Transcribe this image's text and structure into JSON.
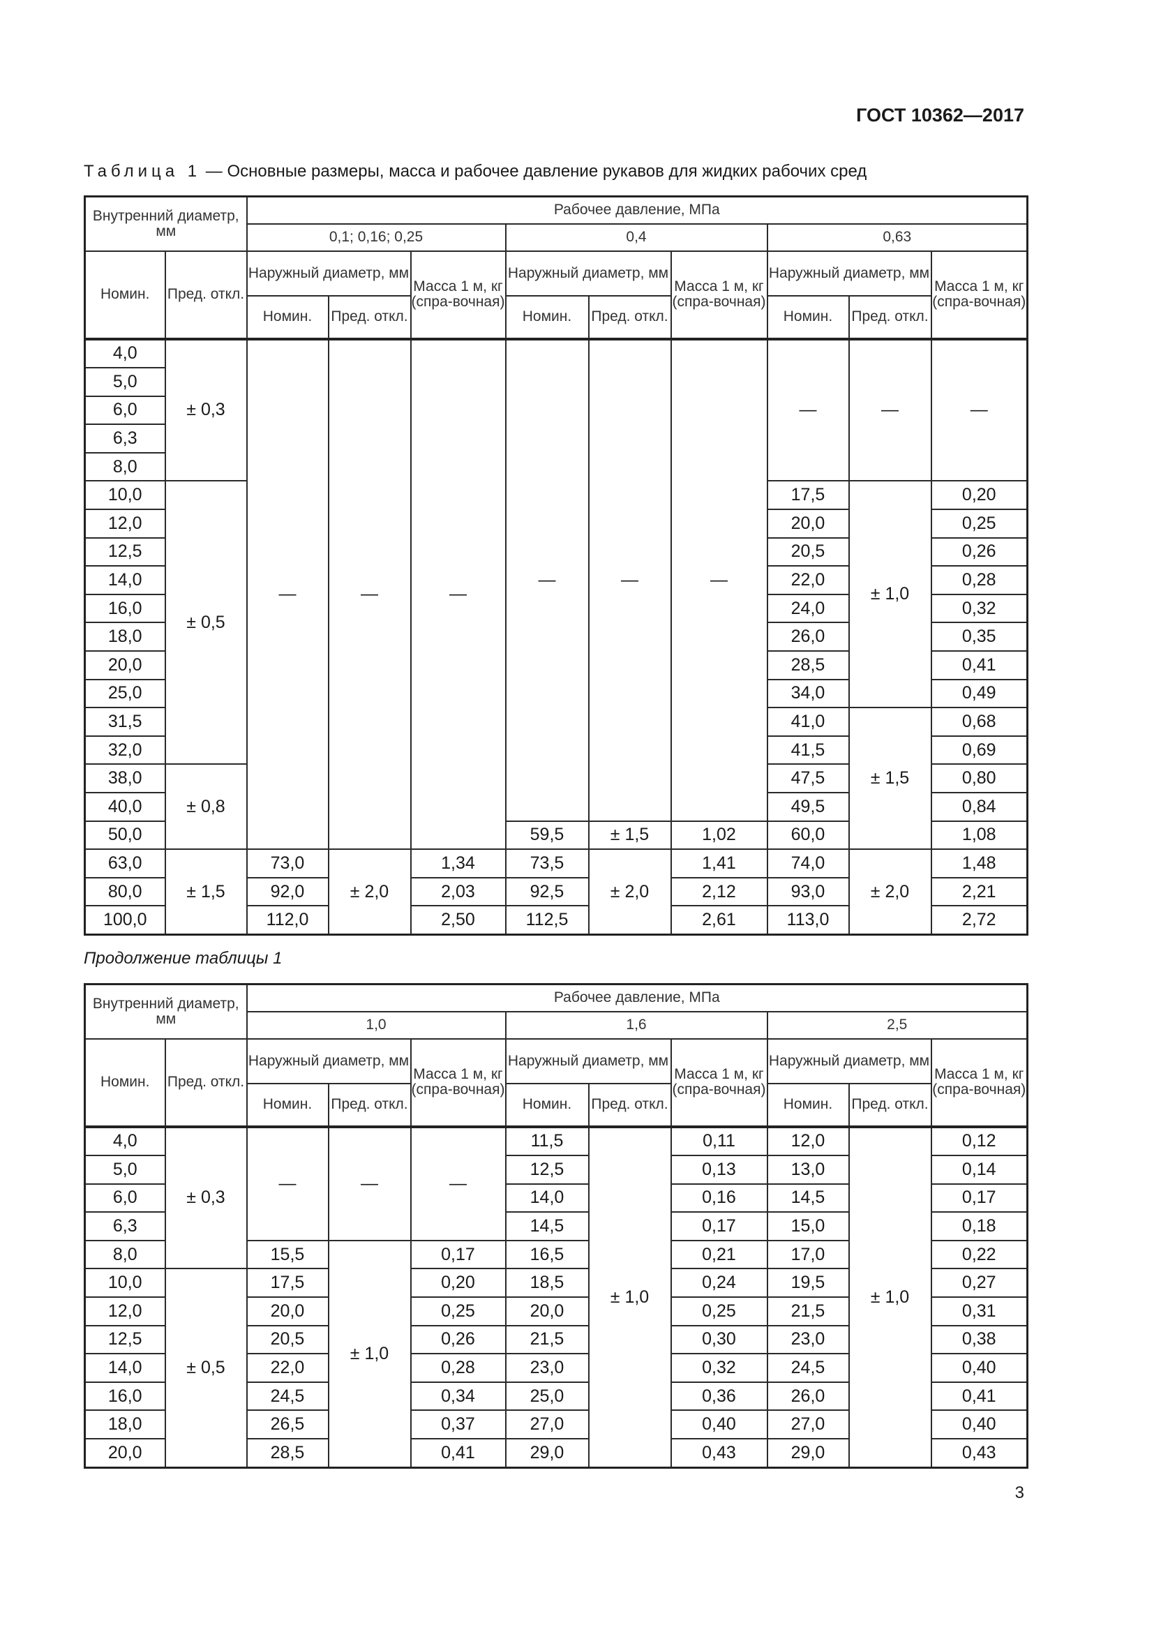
{
  "document": {
    "code": "ГОСТ 10362—2017",
    "caption_lead": "Таблица 1",
    "caption_text": " — Основные размеры, масса и рабочее давление рукавов для жидких рабочих сред",
    "continuation": "Продолжение таблицы 1",
    "page_number": "3"
  },
  "header": {
    "inner_diameter": "Внутренний диаметр, мм",
    "working_pressure": "Рабочее давление, МПа",
    "outer_diameter": "Наружный диаметр, мм",
    "mass": "Масса 1 м, кг (спра-вочная)",
    "nominal": "Номин.",
    "tolerance": "Пред. откл."
  },
  "tables": [
    {
      "pressures": [
        "0,1; 0,16; 0,25",
        "0,4",
        "0,63"
      ],
      "rows": [
        [
          "4,0",
          [
            "± 0,3",
            5
          ],
          [
            "—",
            18
          ],
          [
            "—",
            18
          ],
          [
            "—",
            18
          ],
          [
            "—",
            17
          ],
          [
            "—",
            17
          ],
          [
            "—",
            17
          ],
          [
            "—",
            5
          ],
          [
            "—",
            5
          ],
          [
            "—",
            5
          ]
        ],
        [
          "5,0"
        ],
        [
          "6,0"
        ],
        [
          "6,3"
        ],
        [
          "8,0"
        ],
        [
          "10,0",
          [
            "± 0,5",
            10
          ],
          "17,5",
          [
            "± 1,0",
            8
          ],
          "0,20"
        ],
        [
          "12,0",
          "20,0",
          "0,25"
        ],
        [
          "12,5",
          "20,5",
          "0,26"
        ],
        [
          "14,0",
          "22,0",
          "0,28"
        ],
        [
          "16,0",
          "24,0",
          "0,32"
        ],
        [
          "18,0",
          "26,0",
          "0,35"
        ],
        [
          "20,0",
          "28,5",
          "0,41"
        ],
        [
          "25,0",
          "34,0",
          "0,49"
        ],
        [
          "31,5",
          "41,0",
          [
            "± 1,5",
            5
          ],
          "0,68"
        ],
        [
          "32,0",
          "41,5",
          "0,69"
        ],
        [
          "38,0",
          [
            "± 0,8",
            3
          ],
          "47,5",
          "0,80"
        ],
        [
          "40,0",
          "49,5",
          "0,84"
        ],
        [
          "50,0",
          "59,5",
          "± 1,5",
          "1,02",
          "60,0",
          "1,08"
        ],
        [
          "63,0",
          [
            "± 1,5",
            3
          ],
          "73,0",
          [
            "± 2,0",
            3
          ],
          "1,34",
          "73,5",
          [
            "± 2,0",
            3
          ],
          "1,41",
          "74,0",
          [
            "± 2,0",
            3
          ],
          "1,48"
        ],
        [
          "80,0",
          "92,0",
          "2,03",
          "92,5",
          "2,12",
          "93,0",
          "2,21"
        ],
        [
          "100,0",
          "112,0",
          "2,50",
          "112,5",
          "2,61",
          "113,0",
          "2,72"
        ]
      ]
    },
    {
      "pressures": [
        "1,0",
        "1,6",
        "2,5"
      ],
      "rows": [
        [
          "4,0",
          [
            "± 0,3",
            5
          ],
          [
            "—",
            4
          ],
          [
            "—",
            4
          ],
          [
            "—",
            4
          ],
          "11,5",
          [
            "± 1,0",
            12
          ],
          "0,11",
          "12,0",
          [
            "± 1,0",
            12
          ],
          "0,12"
        ],
        [
          "5,0",
          "12,5",
          "0,13",
          "13,0",
          "0,14"
        ],
        [
          "6,0",
          "14,0",
          "0,16",
          "14,5",
          "0,17"
        ],
        [
          "6,3",
          "14,5",
          "0,17",
          "15,0",
          "0,18"
        ],
        [
          "8,0",
          "15,5",
          [
            "± 1,0",
            8
          ],
          "0,17",
          "16,5",
          "0,21",
          "17,0",
          "0,22"
        ],
        [
          "10,0",
          [
            "± 0,5",
            7
          ],
          "17,5",
          "0,20",
          "18,5",
          "0,24",
          "19,5",
          "0,27"
        ],
        [
          "12,0",
          "20,0",
          "0,25",
          "20,0",
          "0,25",
          "21,5",
          "0,31"
        ],
        [
          "12,5",
          "20,5",
          "0,26",
          "21,5",
          "0,30",
          "23,0",
          "0,38"
        ],
        [
          "14,0",
          "22,0",
          "0,28",
          "23,0",
          "0,32",
          "24,5",
          "0,40"
        ],
        [
          "16,0",
          "24,5",
          "0,34",
          "25,0",
          "0,36",
          "26,0",
          "0,41"
        ],
        [
          "18,0",
          "26,5",
          "0,37",
          "27,0",
          "0,40",
          "27,0",
          "0,40"
        ],
        [
          "20,0",
          "28,5",
          "0,41",
          "29,0",
          "0,43",
          "29,0",
          "0,43"
        ]
      ]
    }
  ]
}
